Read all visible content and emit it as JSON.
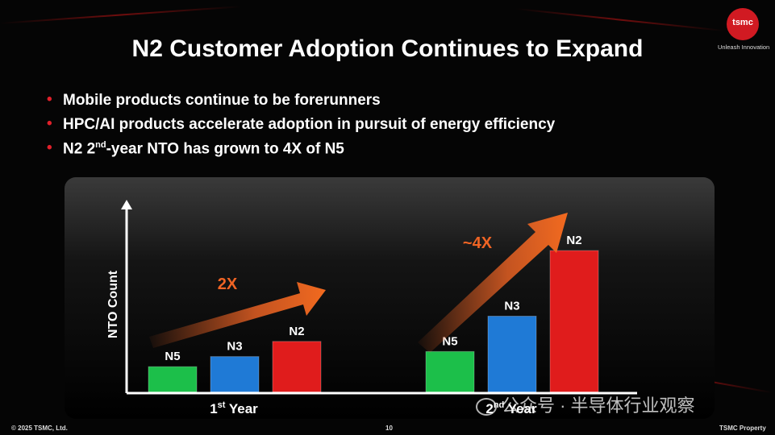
{
  "slide": {
    "title": "N2 Customer Adoption Continues to Expand",
    "logo": {
      "text": "tsmc",
      "tagline": "Unleash Innovation"
    },
    "bullets": [
      {
        "text": "Mobile products continue to be forerunners"
      },
      {
        "text": "HPC/AI products accelerate adoption in pursuit of energy efficiency"
      },
      {
        "pre": "N2 2",
        "sup": "nd",
        "post": "-year NTO has grown to 4X of N5"
      }
    ],
    "footer": {
      "copyright": "© 2025 TSMC, Ltd.",
      "page": "10",
      "property": "TSMC Property"
    },
    "watermark": "公众号 · 半导体行业观察"
  },
  "colors": {
    "n5": "#1cbf4a",
    "n3": "#1f7ad6",
    "n2": "#e01c1c",
    "arrow": "#f06424",
    "accent": "#e0202a"
  },
  "chart_data": {
    "type": "bar",
    "ylabel": "NTO Count",
    "xlabel": "",
    "groups": [
      {
        "label_main": "1",
        "label_sup": "st",
        "label_tail": " Year",
        "categories": [
          "N5",
          "N3",
          "N2"
        ],
        "values": [
          1.0,
          1.4,
          2.0
        ]
      },
      {
        "label_main": "2",
        "label_sup": "nd",
        "label_tail": " Year",
        "categories": [
          "N5",
          "N3",
          "N2"
        ],
        "values": [
          1.6,
          3.0,
          5.6
        ]
      }
    ],
    "annotations": [
      "2X",
      "~4X"
    ],
    "ylim": [
      0,
      8
    ],
    "grid": false
  }
}
